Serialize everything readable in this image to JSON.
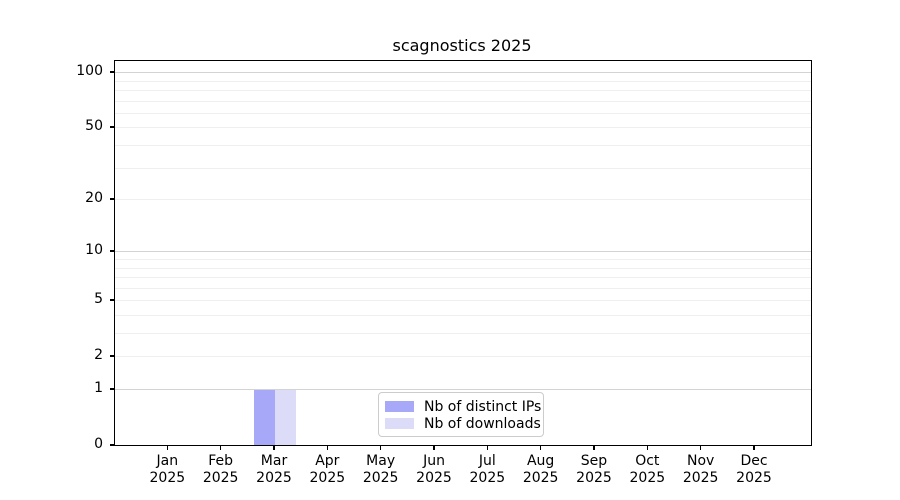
{
  "chart_data": {
    "type": "bar",
    "title": "scagnostics 2025",
    "categories": [
      {
        "month": "Jan",
        "year": "2025"
      },
      {
        "month": "Feb",
        "year": "2025"
      },
      {
        "month": "Mar",
        "year": "2025"
      },
      {
        "month": "Apr",
        "year": "2025"
      },
      {
        "month": "May",
        "year": "2025"
      },
      {
        "month": "Jun",
        "year": "2025"
      },
      {
        "month": "Jul",
        "year": "2025"
      },
      {
        "month": "Aug",
        "year": "2025"
      },
      {
        "month": "Sep",
        "year": "2025"
      },
      {
        "month": "Oct",
        "year": "2025"
      },
      {
        "month": "Nov",
        "year": "2025"
      },
      {
        "month": "Dec",
        "year": "2025"
      }
    ],
    "series": [
      {
        "name": "Nb of distinct IPs",
        "color": "#a8a8f8",
        "values": [
          0,
          0,
          1,
          0,
          0,
          0,
          0,
          0,
          0,
          0,
          0,
          0
        ]
      },
      {
        "name": "Nb of downloads",
        "color": "#dcdcf8",
        "values": [
          0,
          0,
          1,
          0,
          0,
          0,
          0,
          0,
          0,
          0,
          0,
          0
        ]
      }
    ],
    "y_axis": {
      "scale": "log1p",
      "ticks": [
        0,
        1,
        2,
        5,
        10,
        20,
        50,
        100
      ],
      "major_gridlines": [
        1,
        10,
        100
      ],
      "minor_gridlines": [
        2,
        3,
        4,
        5,
        6,
        7,
        8,
        9,
        20,
        30,
        40,
        50,
        60,
        70,
        80,
        90
      ],
      "max": 115
    },
    "xlabel": "",
    "ylabel": "",
    "grid": true,
    "legend": {
      "position": "lower center",
      "entries": [
        "Nb of distinct IPs",
        "Nb of downloads"
      ]
    }
  },
  "colors": {
    "major_gridline": "#d3d3d3",
    "minor_gridline": "#efefef",
    "spine": "#000000",
    "legend_border": "#cccccc",
    "background": "#ffffff"
  }
}
